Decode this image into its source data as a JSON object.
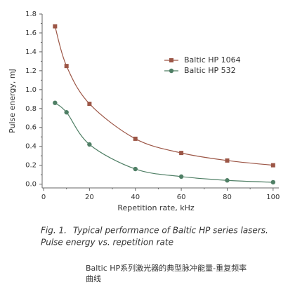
{
  "chart_data": {
    "type": "line",
    "x_label": "Repetition rate, kHz",
    "y_label": "Pulse energy, mJ",
    "x": [
      5,
      10,
      20,
      40,
      60,
      80,
      100
    ],
    "series": [
      {
        "name": "Baltic HP 1064",
        "color": "#9c5646",
        "marker": "square",
        "values": [
          1.67,
          1.25,
          0.85,
          0.48,
          0.33,
          0.25,
          0.2
        ]
      },
      {
        "name": "Baltic HP 532",
        "color": "#4f7f65",
        "marker": "circle",
        "values": [
          0.86,
          0.76,
          0.42,
          0.16,
          0.08,
          0.04,
          0.02
        ]
      }
    ],
    "xlim": [
      0,
      102.5
    ],
    "ylim": [
      -0.04,
      1.8
    ],
    "xticks": [
      0,
      20,
      40,
      60,
      80,
      100
    ],
    "yticks": [
      {
        "value": 0,
        "label": "0.0"
      },
      0.2,
      0.4,
      0.6,
      0.8,
      {
        "value": 1,
        "label": "1.0"
      },
      1.2,
      1.4,
      1.6,
      1.8
    ],
    "legend": "upper right",
    "caption_label": "Fig. 1.",
    "caption_lines": [
      "Typical performance of Baltic HP series lasers.",
      "Pulse energy vs. repetition rate"
    ],
    "note_lines": [
      "Baltic HP系列激光器的典型脉冲能量-重复频率",
      "曲线"
    ]
  }
}
